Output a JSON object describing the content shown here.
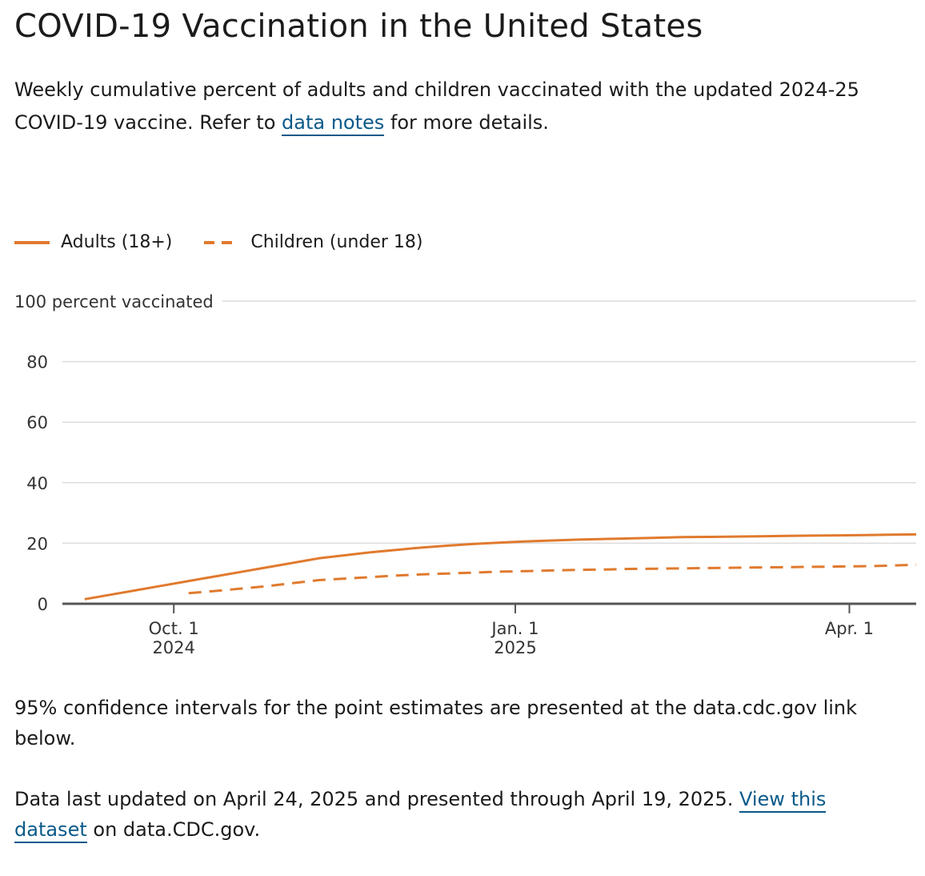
{
  "header": {
    "title": "COVID-19 Vaccination in the United States",
    "subtitle_before": "Weekly cumulative percent of adults and children vaccinated with the updated 2024-25 COVID-19 vaccine. Refer to ",
    "subtitle_link": "data notes",
    "subtitle_after": " for more details."
  },
  "footer": {
    "ci_note": "95% confidence intervals for the point estimates are presented at the data.cdc.gov link below.",
    "updated_before": "Data last updated on April 24, 2025 and presented through April 19, 2025. ",
    "updated_link": "View this dataset",
    "updated_after": " on data.CDC.gov."
  },
  "colors": {
    "series": "#e07a2e",
    "grid": "#dcdcdc",
    "axis": "#555555",
    "link": "#0b5a8a"
  },
  "chart_data": {
    "type": "line",
    "title": "",
    "ylabel": "percent vaccinated",
    "ylim": [
      0,
      100
    ],
    "yticks": [
      0,
      20,
      40,
      60,
      80,
      100
    ],
    "xlim": [
      "2024-09-01",
      "2025-04-19"
    ],
    "xticks": [
      {
        "date": "2024-10-01",
        "line1": "Oct. 1",
        "line2": "2024"
      },
      {
        "date": "2025-01-01",
        "line1": "Jan. 1",
        "line2": "2025"
      },
      {
        "date": "2025-04-01",
        "line1": "Apr. 1",
        "line2": ""
      }
    ],
    "grid": true,
    "legend": "top-left",
    "series": [
      {
        "name": "Adults (18+)",
        "style": "solid",
        "points": [
          [
            "2024-09-07",
            1.5
          ],
          [
            "2024-09-14",
            3.0
          ],
          [
            "2024-09-21",
            4.5
          ],
          [
            "2024-09-28",
            6.0
          ],
          [
            "2024-10-05",
            7.5
          ],
          [
            "2024-10-12",
            9.0
          ],
          [
            "2024-10-19",
            10.5
          ],
          [
            "2024-10-26",
            12.0
          ],
          [
            "2024-11-02",
            13.5
          ],
          [
            "2024-11-09",
            15.0
          ],
          [
            "2024-11-16",
            16.0
          ],
          [
            "2024-11-23",
            17.0
          ],
          [
            "2024-11-30",
            17.8
          ],
          [
            "2024-12-07",
            18.6
          ],
          [
            "2024-12-14",
            19.2
          ],
          [
            "2024-12-21",
            19.8
          ],
          [
            "2024-12-28",
            20.2
          ],
          [
            "2025-01-04",
            20.6
          ],
          [
            "2025-01-11",
            20.9
          ],
          [
            "2025-01-18",
            21.2
          ],
          [
            "2025-01-25",
            21.4
          ],
          [
            "2025-02-01",
            21.6
          ],
          [
            "2025-02-08",
            21.8
          ],
          [
            "2025-02-15",
            22.0
          ],
          [
            "2025-02-22",
            22.1
          ],
          [
            "2025-03-01",
            22.2
          ],
          [
            "2025-03-08",
            22.3
          ],
          [
            "2025-03-15",
            22.4
          ],
          [
            "2025-03-22",
            22.5
          ],
          [
            "2025-03-29",
            22.6
          ],
          [
            "2025-04-05",
            22.7
          ],
          [
            "2025-04-12",
            22.8
          ],
          [
            "2025-04-19",
            22.9
          ]
        ]
      },
      {
        "name": "Children (under 18)",
        "style": "dashed",
        "points": [
          [
            "2024-10-05",
            3.5
          ],
          [
            "2024-10-12",
            4.2
          ],
          [
            "2024-10-19",
            5.0
          ],
          [
            "2024-10-26",
            5.8
          ],
          [
            "2024-11-02",
            6.8
          ],
          [
            "2024-11-09",
            7.8
          ],
          [
            "2024-11-16",
            8.3
          ],
          [
            "2024-11-23",
            8.8
          ],
          [
            "2024-11-30",
            9.3
          ],
          [
            "2024-12-07",
            9.7
          ],
          [
            "2024-12-14",
            10.0
          ],
          [
            "2024-12-21",
            10.3
          ],
          [
            "2024-12-28",
            10.6
          ],
          [
            "2025-01-04",
            10.8
          ],
          [
            "2025-01-11",
            11.0
          ],
          [
            "2025-01-18",
            11.2
          ],
          [
            "2025-01-25",
            11.3
          ],
          [
            "2025-02-01",
            11.5
          ],
          [
            "2025-02-08",
            11.6
          ],
          [
            "2025-02-15",
            11.7
          ],
          [
            "2025-02-22",
            11.8
          ],
          [
            "2025-03-01",
            11.9
          ],
          [
            "2025-03-08",
            12.0
          ],
          [
            "2025-03-15",
            12.1
          ],
          [
            "2025-03-22",
            12.2
          ],
          [
            "2025-03-29",
            12.3
          ],
          [
            "2025-04-05",
            12.4
          ],
          [
            "2025-04-12",
            12.6
          ],
          [
            "2025-04-19",
            12.9
          ]
        ]
      }
    ]
  }
}
